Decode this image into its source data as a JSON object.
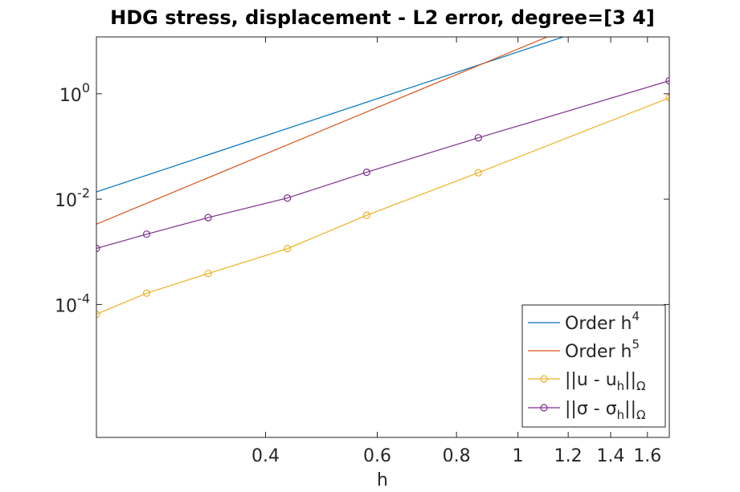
{
  "chart_data": {
    "type": "line",
    "title": "HDG stress, displacement - L2 error, degree=[3  4]",
    "xlabel": "h",
    "ylabel": "",
    "xscale": "log",
    "yscale": "log",
    "xlim": [
      0.2165,
      1.732
    ],
    "ylim": [
      3e-07,
      12
    ],
    "xticks": [
      {
        "value": 0.4,
        "label": "0.4"
      },
      {
        "value": 0.6,
        "label": "0.6"
      },
      {
        "value": 0.8,
        "label": "0.8"
      },
      {
        "value": 1,
        "label": "1"
      },
      {
        "value": 1.2,
        "label": "1.2"
      },
      {
        "value": 1.4,
        "label": "1.4"
      },
      {
        "value": 1.6,
        "label": "1.6"
      }
    ],
    "yticks": [
      {
        "value": 1,
        "base": "10",
        "exp": "0"
      },
      {
        "value": 0.01,
        "base": "10",
        "exp": "-2"
      },
      {
        "value": 0.0001,
        "base": "10",
        "exp": "-4"
      }
    ],
    "legend_position": "bottom-right",
    "series": [
      {
        "name": "Order h",
        "name_sup": "4",
        "name_sub": "",
        "color": "#0072bd",
        "marker": "none",
        "x": [
          0.2165,
          1.732
        ],
        "y": [
          0.0137,
          56
        ]
      },
      {
        "name": "Order h",
        "name_sup": "5",
        "name_sub": "",
        "color": "#d95319",
        "marker": "none",
        "x": [
          0.2165,
          1.732
        ],
        "y": [
          0.00335,
          110
        ]
      },
      {
        "name": "||u - u",
        "name_sub": "h",
        "name_tail": "||",
        "name_tail_sub": "Ω",
        "color": "#edb120",
        "marker": "circle",
        "x": [
          0.2165,
          0.2598,
          0.3248,
          0.433,
          0.5774,
          0.866,
          1.732
        ],
        "y": [
          6.54e-05,
          0.000164,
          0.000387,
          0.00115,
          0.00494,
          0.0317,
          0.838
        ]
      },
      {
        "name": "||σ - σ",
        "name_sub": "h",
        "name_tail": "||",
        "name_tail_sub": "Ω",
        "color": "#7e2f8e",
        "marker": "circle",
        "x": [
          0.2165,
          0.2598,
          0.3248,
          0.433,
          0.5774,
          0.866,
          1.732
        ],
        "y": [
          0.00116,
          0.00216,
          0.00446,
          0.0105,
          0.0324,
          0.146,
          1.77
        ]
      }
    ]
  }
}
